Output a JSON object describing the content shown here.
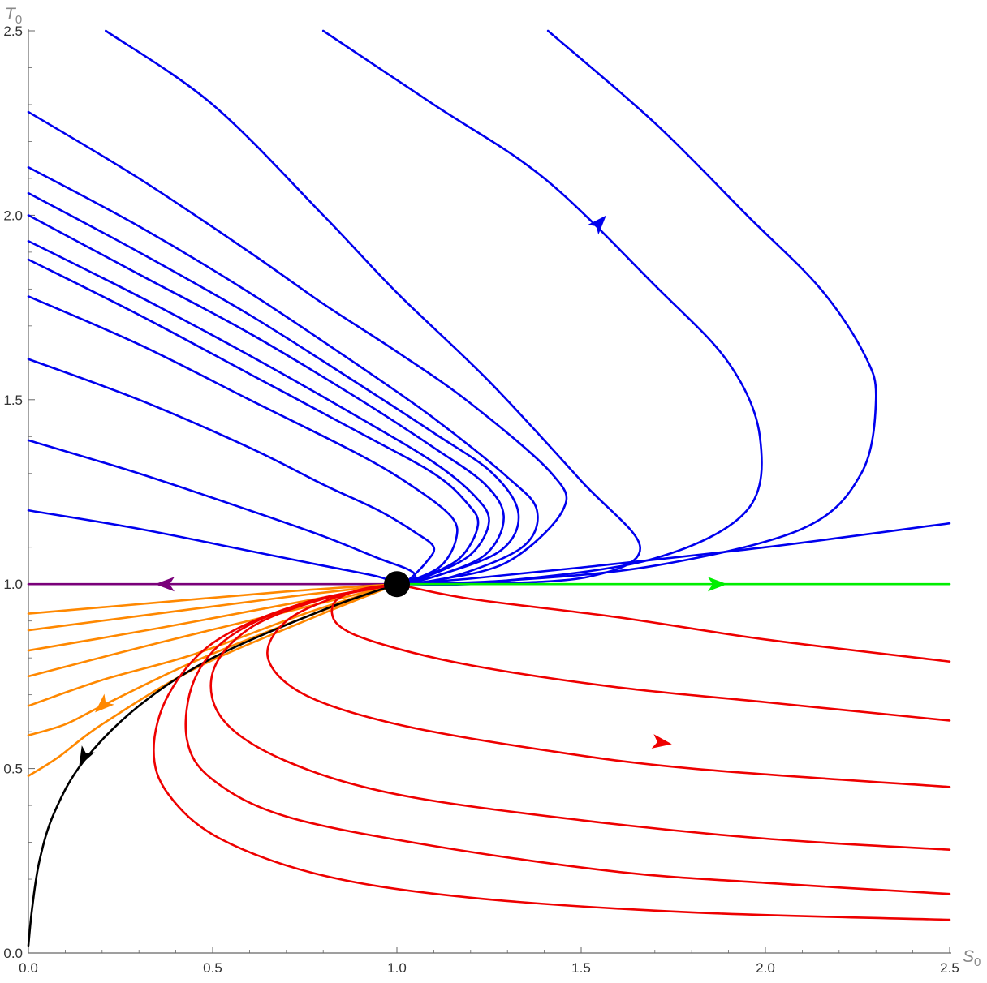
{
  "chart_data": {
    "type": "line",
    "title": "",
    "xlabel": "S",
    "xlabel_subscript": "0",
    "ylabel": "T",
    "ylabel_subscript": "0",
    "xlim": [
      0,
      2.5
    ],
    "ylim": [
      0,
      2.5
    ],
    "x_ticks": [
      "0.0",
      "0.5",
      "1.0",
      "1.5",
      "2.0",
      "2.5"
    ],
    "y_ticks": [
      "0.0",
      "0.5",
      "1.0",
      "1.5",
      "2.0",
      "2.5"
    ],
    "grid": false,
    "legend": "none",
    "colors": {
      "blue": "#0000ee",
      "red": "#ee0000",
      "orange": "#ff8800",
      "green": "#00ee00",
      "purple": "#7a007a",
      "black": "#000000",
      "axis": "#666666"
    },
    "fixed_point": [
      1.0,
      1.0
    ],
    "series": [
      {
        "color": "blue",
        "points": [
          [
            0.21,
            2.5
          ],
          [
            0.5,
            2.3
          ],
          [
            0.8,
            2.0
          ],
          [
            1.0,
            1.79
          ],
          [
            1.25,
            1.55
          ],
          [
            1.5,
            1.28
          ],
          [
            1.66,
            1.1
          ],
          [
            1.52,
            1.02
          ],
          [
            1.2,
            1.0
          ],
          [
            1.0,
            1.0
          ]
        ]
      },
      {
        "color": "blue",
        "points": [
          [
            0.8,
            2.5
          ],
          [
            1.1,
            2.3
          ],
          [
            1.4,
            2.1
          ],
          [
            1.7,
            1.81
          ],
          [
            1.9,
            1.6
          ],
          [
            1.985,
            1.4
          ],
          [
            1.95,
            1.2
          ],
          [
            1.7,
            1.07
          ],
          [
            1.3,
            1.01
          ],
          [
            1.0,
            1.0
          ]
        ]
      },
      {
        "color": "blue",
        "points": [
          [
            1.41,
            2.5
          ],
          [
            1.7,
            2.25
          ],
          [
            1.95,
            2.0
          ],
          [
            2.15,
            1.8
          ],
          [
            2.27,
            1.62
          ],
          [
            2.3,
            1.5
          ],
          [
            2.26,
            1.3
          ],
          [
            2.1,
            1.15
          ],
          [
            1.7,
            1.05
          ],
          [
            1.3,
            1.01
          ],
          [
            1.0,
            1.0
          ]
        ]
      },
      {
        "color": "blue",
        "points": [
          [
            2.5,
            1.165
          ],
          [
            2.0,
            1.1
          ],
          [
            1.5,
            1.045
          ],
          [
            1.2,
            1.015
          ],
          [
            1.0,
            1.0
          ]
        ]
      },
      {
        "color": "blue",
        "points": [
          [
            0,
            2.28
          ],
          [
            0.3,
            2.1
          ],
          [
            0.6,
            1.9
          ],
          [
            0.8,
            1.76
          ],
          [
            1.0,
            1.63
          ],
          [
            1.2,
            1.49
          ],
          [
            1.42,
            1.3
          ],
          [
            1.45,
            1.2
          ],
          [
            1.3,
            1.06
          ],
          [
            1.1,
            1.01
          ],
          [
            1.0,
            1.0
          ]
        ]
      },
      {
        "color": "blue",
        "points": [
          [
            0,
            2.13
          ],
          [
            0.3,
            1.97
          ],
          [
            0.6,
            1.79
          ],
          [
            0.9,
            1.59
          ],
          [
            1.1,
            1.45
          ],
          [
            1.3,
            1.29
          ],
          [
            1.38,
            1.2
          ],
          [
            1.34,
            1.1
          ],
          [
            1.15,
            1.02
          ],
          [
            1.0,
            1.0
          ]
        ]
      },
      {
        "color": "blue",
        "points": [
          [
            0,
            2.06
          ],
          [
            0.3,
            1.9
          ],
          [
            0.6,
            1.73
          ],
          [
            0.9,
            1.54
          ],
          [
            1.1,
            1.41
          ],
          [
            1.26,
            1.3
          ],
          [
            1.33,
            1.19
          ],
          [
            1.28,
            1.09
          ],
          [
            1.1,
            1.02
          ],
          [
            1.0,
            1.0
          ]
        ]
      },
      {
        "color": "blue",
        "points": [
          [
            0,
            2.0
          ],
          [
            0.3,
            1.84
          ],
          [
            0.6,
            1.68
          ],
          [
            0.9,
            1.5
          ],
          [
            1.1,
            1.37
          ],
          [
            1.24,
            1.27
          ],
          [
            1.29,
            1.18
          ],
          [
            1.24,
            1.08
          ],
          [
            1.1,
            1.02
          ],
          [
            1.0,
            1.0
          ]
        ]
      },
      {
        "color": "blue",
        "points": [
          [
            0,
            1.93
          ],
          [
            0.3,
            1.78
          ],
          [
            0.6,
            1.62
          ],
          [
            0.9,
            1.45
          ],
          [
            1.1,
            1.33
          ],
          [
            1.21,
            1.24
          ],
          [
            1.25,
            1.17
          ],
          [
            1.2,
            1.08
          ],
          [
            1.08,
            1.02
          ],
          [
            1.0,
            1.0
          ]
        ]
      },
      {
        "color": "blue",
        "points": [
          [
            0,
            1.88
          ],
          [
            0.3,
            1.73
          ],
          [
            0.6,
            1.57
          ],
          [
            0.9,
            1.41
          ],
          [
            1.1,
            1.3
          ],
          [
            1.19,
            1.22
          ],
          [
            1.22,
            1.16
          ],
          [
            1.17,
            1.07
          ],
          [
            1.06,
            1.015
          ],
          [
            1.0,
            1.0
          ]
        ]
      },
      {
        "color": "blue",
        "points": [
          [
            0,
            1.78
          ],
          [
            0.3,
            1.65
          ],
          [
            0.6,
            1.5
          ],
          [
            0.9,
            1.35
          ],
          [
            1.05,
            1.26
          ],
          [
            1.15,
            1.18
          ],
          [
            1.16,
            1.12
          ],
          [
            1.12,
            1.05
          ],
          [
            1.04,
            1.01
          ],
          [
            1.0,
            1.0
          ]
        ]
      },
      {
        "color": "blue",
        "points": [
          [
            0,
            1.61
          ],
          [
            0.3,
            1.5
          ],
          [
            0.6,
            1.37
          ],
          [
            0.8,
            1.27
          ],
          [
            0.95,
            1.2
          ],
          [
            1.05,
            1.14
          ],
          [
            1.1,
            1.1
          ],
          [
            1.08,
            1.06
          ],
          [
            1.03,
            1.01
          ],
          [
            1.0,
            1.0
          ]
        ]
      },
      {
        "color": "blue",
        "points": [
          [
            0,
            1.39
          ],
          [
            0.3,
            1.3
          ],
          [
            0.6,
            1.2
          ],
          [
            0.8,
            1.13
          ],
          [
            0.95,
            1.07
          ],
          [
            1.03,
            1.04
          ],
          [
            1.05,
            1.02
          ],
          [
            1.02,
            1.005
          ],
          [
            1.0,
            1.0
          ]
        ]
      },
      {
        "color": "blue",
        "points": [
          [
            0,
            1.2
          ],
          [
            0.3,
            1.15
          ],
          [
            0.6,
            1.09
          ],
          [
            0.8,
            1.05
          ],
          [
            0.95,
            1.02
          ],
          [
            1.0,
            1.0
          ]
        ]
      },
      {
        "color": "purple",
        "points": [
          [
            1.0,
            1.0
          ],
          [
            0,
            1.0
          ]
        ]
      },
      {
        "color": "green",
        "points": [
          [
            1.0,
            1.0
          ],
          [
            2.5,
            1.0
          ]
        ]
      },
      {
        "color": "orange",
        "points": [
          [
            1.0,
            1.0
          ],
          [
            0.7,
            0.98
          ],
          [
            0.35,
            0.95
          ],
          [
            0,
            0.92
          ]
        ]
      },
      {
        "color": "orange",
        "points": [
          [
            1.0,
            1.0
          ],
          [
            0.7,
            0.965
          ],
          [
            0.35,
            0.92
          ],
          [
            0,
            0.875
          ]
        ]
      },
      {
        "color": "orange",
        "points": [
          [
            1.0,
            1.0
          ],
          [
            0.7,
            0.945
          ],
          [
            0.35,
            0.88
          ],
          [
            0,
            0.82
          ]
        ]
      },
      {
        "color": "orange",
        "points": [
          [
            1.0,
            1.0
          ],
          [
            0.7,
            0.925
          ],
          [
            0.35,
            0.84
          ],
          [
            0,
            0.75
          ]
        ]
      },
      {
        "color": "orange",
        "points": [
          [
            1.0,
            1.0
          ],
          [
            0.75,
            0.92
          ],
          [
            0.45,
            0.81
          ],
          [
            0.2,
            0.74
          ],
          [
            0,
            0.67
          ]
        ]
      },
      {
        "color": "orange",
        "points": [
          [
            1.0,
            1.0
          ],
          [
            0.75,
            0.91
          ],
          [
            0.45,
            0.79
          ],
          [
            0.2,
            0.67
          ],
          [
            0.1,
            0.62
          ],
          [
            0,
            0.59
          ]
        ]
      },
      {
        "color": "orange",
        "points": [
          [
            1.0,
            1.0
          ],
          [
            0.75,
            0.9
          ],
          [
            0.45,
            0.77
          ],
          [
            0.2,
            0.62
          ],
          [
            0.08,
            0.53
          ],
          [
            0,
            0.48
          ]
        ]
      },
      {
        "color": "black",
        "points": [
          [
            1.0,
            1.0
          ],
          [
            0.8,
            0.93
          ],
          [
            0.5,
            0.8
          ],
          [
            0.3,
            0.67
          ],
          [
            0.15,
            0.52
          ],
          [
            0.07,
            0.38
          ],
          [
            0.03,
            0.25
          ],
          [
            0.01,
            0.12
          ],
          [
            0,
            0.02
          ]
        ]
      },
      {
        "color": "red",
        "points": [
          [
            1.0,
            1.0
          ],
          [
            1.2,
            0.96
          ],
          [
            1.6,
            0.91
          ],
          [
            2.0,
            0.85
          ],
          [
            2.5,
            0.79
          ]
        ]
      },
      {
        "color": "red",
        "points": [
          [
            1.0,
            1.0
          ],
          [
            0.9,
            0.985
          ],
          [
            0.83,
            0.95
          ],
          [
            0.84,
            0.89
          ],
          [
            0.95,
            0.84
          ],
          [
            1.2,
            0.78
          ],
          [
            1.6,
            0.72
          ],
          [
            2.0,
            0.68
          ],
          [
            2.5,
            0.63
          ]
        ]
      },
      {
        "color": "red",
        "points": [
          [
            1.0,
            1.0
          ],
          [
            0.85,
            0.97
          ],
          [
            0.7,
            0.9
          ],
          [
            0.65,
            0.8
          ],
          [
            0.75,
            0.7
          ],
          [
            1.0,
            0.62
          ],
          [
            1.4,
            0.55
          ],
          [
            1.8,
            0.5
          ],
          [
            2.5,
            0.45
          ]
        ]
      },
      {
        "color": "red",
        "points": [
          [
            1.0,
            1.0
          ],
          [
            0.8,
            0.96
          ],
          [
            0.6,
            0.88
          ],
          [
            0.5,
            0.76
          ],
          [
            0.53,
            0.63
          ],
          [
            0.7,
            0.52
          ],
          [
            1.0,
            0.43
          ],
          [
            1.5,
            0.36
          ],
          [
            2.0,
            0.31
          ],
          [
            2.5,
            0.28
          ]
        ]
      },
      {
        "color": "red",
        "points": [
          [
            1.0,
            1.0
          ],
          [
            0.75,
            0.95
          ],
          [
            0.55,
            0.86
          ],
          [
            0.45,
            0.74
          ],
          [
            0.43,
            0.58
          ],
          [
            0.5,
            0.47
          ],
          [
            0.7,
            0.37
          ],
          [
            1.1,
            0.29
          ],
          [
            1.6,
            0.22
          ],
          [
            2.0,
            0.19
          ],
          [
            2.5,
            0.16
          ]
        ]
      },
      {
        "color": "red",
        "points": [
          [
            1.0,
            1.0
          ],
          [
            0.72,
            0.94
          ],
          [
            0.5,
            0.84
          ],
          [
            0.38,
            0.7
          ],
          [
            0.34,
            0.55
          ],
          [
            0.38,
            0.43
          ],
          [
            0.52,
            0.31
          ],
          [
            0.8,
            0.21
          ],
          [
            1.2,
            0.15
          ],
          [
            1.8,
            0.11
          ],
          [
            2.5,
            0.09
          ]
        ]
      }
    ],
    "arrows": [
      {
        "color": "blue",
        "at": [
          1.55,
          1.98
        ],
        "direction": [
          0.55,
          0.6
        ]
      },
      {
        "color": "purple",
        "at": [
          0.37,
          1.0
        ],
        "direction": [
          -1,
          0
        ]
      },
      {
        "color": "green",
        "at": [
          1.87,
          1.0
        ],
        "direction": [
          1,
          0
        ]
      },
      {
        "color": "red",
        "at": [
          1.72,
          0.57
        ],
        "direction": [
          1,
          -0.15
        ]
      },
      {
        "color": "orange",
        "at": [
          0.2,
          0.67
        ],
        "direction": [
          -0.65,
          -0.6
        ]
      },
      {
        "color": "black",
        "at": [
          0.15,
          0.53
        ],
        "direction": [
          -0.4,
          -0.75
        ]
      }
    ]
  }
}
